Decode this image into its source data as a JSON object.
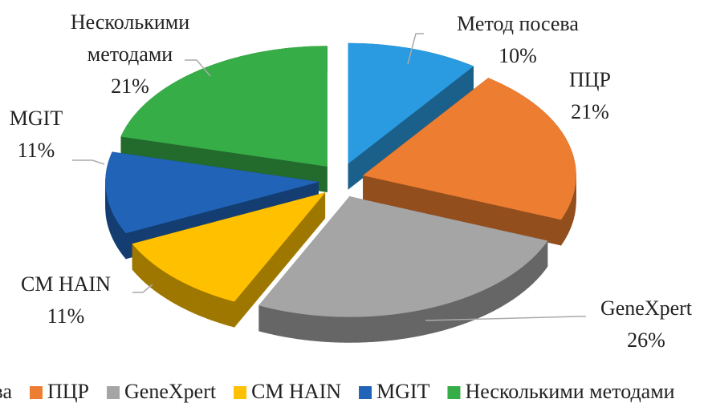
{
  "chart_data": {
    "type": "pie",
    "categories": [
      "Метод посева",
      "ПЦР",
      "GeneXpert",
      "CM HAIN",
      "MGIT",
      "Несколькими методами"
    ],
    "values": [
      10,
      21,
      26,
      11,
      11,
      21
    ],
    "value_labels": [
      "10%",
      "21%",
      "26%",
      "11%",
      "11%",
      "21%"
    ],
    "colors": [
      "#2a9be0",
      "#ed7d31",
      "#a5a5a5",
      "#ffc000",
      "#2163b6",
      "#37ad48"
    ],
    "legend": "bottom"
  }
}
